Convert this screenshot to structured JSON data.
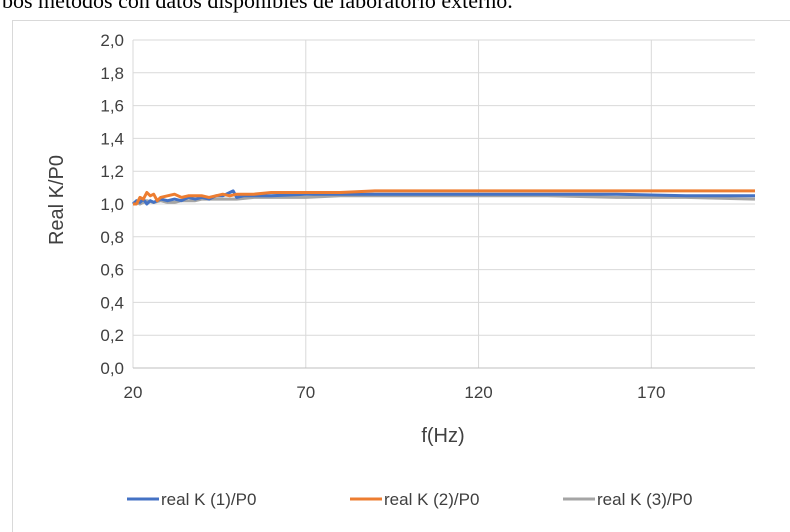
{
  "page": {
    "caption_fragment": "bos métodos con datos disponibles de laboratorio externo."
  },
  "chart_data": {
    "type": "line",
    "xlabel": "f(Hz)",
    "ylabel": "Real K/P0",
    "xlim": [
      20,
      200
    ],
    "ylim": [
      0.0,
      2.0
    ],
    "x_ticks": [
      "20",
      "70",
      "120",
      "170"
    ],
    "y_ticks": [
      "0,0",
      "0,2",
      "0,4",
      "0,6",
      "0,8",
      "1,0",
      "1,2",
      "1,4",
      "1,6",
      "1,8",
      "2,0"
    ],
    "grid": true,
    "legend_position": "bottom",
    "series": [
      {
        "name": "real K (1)/P0",
        "color": "#4472c4",
        "x": [
          20,
          21,
          22,
          23,
          24,
          25,
          26,
          27,
          28,
          30,
          32,
          34,
          36,
          38,
          40,
          42,
          44,
          46,
          48,
          49,
          50,
          52,
          55,
          60,
          70,
          80,
          90,
          100,
          110,
          120,
          140,
          160,
          180,
          200
        ],
        "y": [
          1.0,
          1.02,
          1.01,
          1.03,
          1.0,
          1.02,
          1.01,
          1.02,
          1.03,
          1.02,
          1.03,
          1.02,
          1.04,
          1.03,
          1.04,
          1.03,
          1.05,
          1.05,
          1.07,
          1.08,
          1.04,
          1.05,
          1.05,
          1.05,
          1.06,
          1.06,
          1.06,
          1.06,
          1.06,
          1.06,
          1.06,
          1.06,
          1.05,
          1.05
        ]
      },
      {
        "name": "real K (2)/P0",
        "color": "#ed7d31",
        "x": [
          20,
          21,
          22,
          23,
          24,
          25,
          26,
          27,
          28,
          30,
          32,
          34,
          36,
          38,
          40,
          42,
          44,
          46,
          48,
          50,
          55,
          60,
          70,
          80,
          90,
          100,
          110,
          120,
          140,
          160,
          180,
          200
        ],
        "y": [
          1.0,
          1.0,
          1.04,
          1.03,
          1.07,
          1.05,
          1.06,
          1.02,
          1.04,
          1.05,
          1.06,
          1.04,
          1.05,
          1.05,
          1.05,
          1.04,
          1.05,
          1.06,
          1.05,
          1.06,
          1.06,
          1.07,
          1.07,
          1.07,
          1.08,
          1.08,
          1.08,
          1.08,
          1.08,
          1.08,
          1.08,
          1.08
        ]
      },
      {
        "name": "real K (3)/P0",
        "color": "#a5a5a5",
        "x": [
          20,
          21,
          22,
          23,
          24,
          26,
          28,
          30,
          32,
          34,
          36,
          38,
          40,
          44,
          48,
          50,
          55,
          60,
          70,
          80,
          90,
          100,
          120,
          140,
          160,
          180,
          200
        ],
        "y": [
          1.0,
          1.01,
          1.0,
          1.01,
          1.02,
          1.01,
          1.02,
          1.01,
          1.01,
          1.02,
          1.02,
          1.02,
          1.03,
          1.03,
          1.03,
          1.03,
          1.04,
          1.04,
          1.04,
          1.05,
          1.05,
          1.05,
          1.05,
          1.05,
          1.04,
          1.04,
          1.03
        ]
      }
    ]
  }
}
